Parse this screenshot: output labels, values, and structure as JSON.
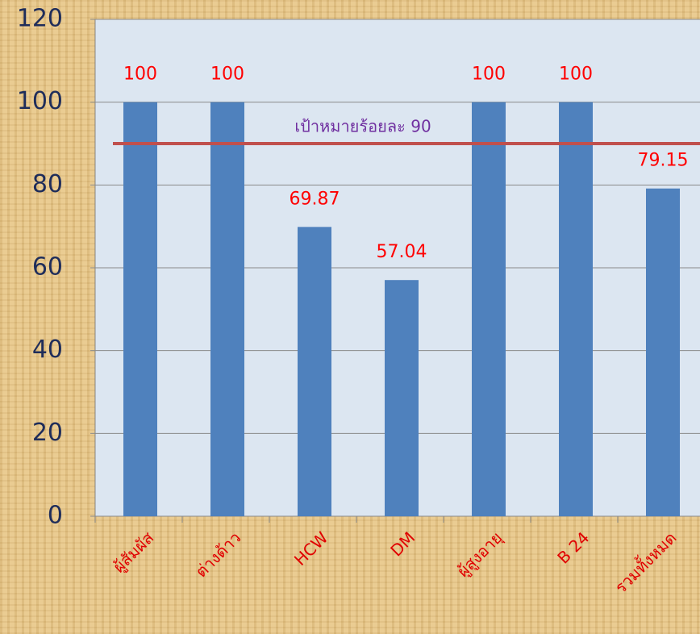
{
  "chart_data": {
    "type": "bar",
    "categories": [
      "ผู้สัมผัส",
      "ต่างด้าว",
      "HCW",
      "DM",
      "ผู้สูงอายุ",
      "B 24",
      "รวมทั้งหมด"
    ],
    "values": [
      100,
      100,
      69.87,
      57.04,
      100,
      100,
      79.15
    ],
    "color": "#4f81bd",
    "label_color": "#ff0000",
    "ylim": [
      0,
      120
    ],
    "yticks": [
      0,
      20,
      40,
      60,
      80,
      100,
      120
    ],
    "grid": true,
    "target": {
      "value": 90,
      "label": "เป้าหมายร้อยละ 90",
      "color": "#c0504d",
      "label_color": "#7030a0"
    }
  }
}
